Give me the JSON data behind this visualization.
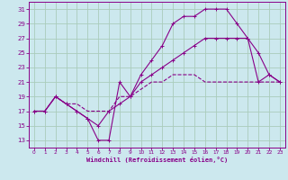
{
  "xlabel": "Windchill (Refroidissement éolien,°C)",
  "bg_color": "#cce8ee",
  "grid_color": "#aaccbb",
  "line_color": "#880088",
  "xlim": [
    -0.5,
    23.5
  ],
  "ylim": [
    12,
    32
  ],
  "yticks": [
    13,
    15,
    17,
    19,
    21,
    23,
    25,
    27,
    29,
    31
  ],
  "xticks": [
    0,
    1,
    2,
    3,
    4,
    5,
    6,
    7,
    8,
    9,
    10,
    11,
    12,
    13,
    14,
    15,
    16,
    17,
    18,
    19,
    20,
    21,
    22,
    23
  ],
  "line_dashed_x": [
    0,
    1,
    2,
    3,
    4,
    5,
    6,
    7,
    8,
    9,
    10,
    11,
    12,
    13,
    14,
    15,
    16,
    17,
    18,
    19,
    20,
    21,
    22,
    23
  ],
  "line_dashed_y": [
    17,
    17,
    19,
    18,
    18,
    17,
    17,
    17,
    19,
    19,
    20,
    21,
    21,
    22,
    22,
    22,
    21,
    21,
    21,
    21,
    21,
    21,
    21,
    21
  ],
  "line_top_x": [
    0,
    1,
    2,
    3,
    4,
    5,
    6,
    7,
    8,
    9,
    10,
    11,
    12,
    13,
    14,
    15,
    16,
    17,
    18,
    19,
    20,
    21,
    22,
    23
  ],
  "line_top_y": [
    17,
    17,
    19,
    18,
    17,
    16,
    13,
    13,
    21,
    19,
    22,
    24,
    26,
    29,
    30,
    30,
    31,
    31,
    31,
    29,
    27,
    25,
    22,
    21
  ],
  "line_mid_x": [
    0,
    1,
    2,
    3,
    4,
    5,
    6,
    7,
    8,
    9,
    10,
    11,
    12,
    13,
    14,
    15,
    16,
    17,
    18,
    19,
    20,
    21,
    22,
    23
  ],
  "line_mid_y": [
    17,
    17,
    19,
    18,
    17,
    16,
    15,
    17,
    18,
    19,
    21,
    22,
    23,
    24,
    25,
    26,
    27,
    27,
    27,
    27,
    27,
    21,
    22,
    21
  ]
}
